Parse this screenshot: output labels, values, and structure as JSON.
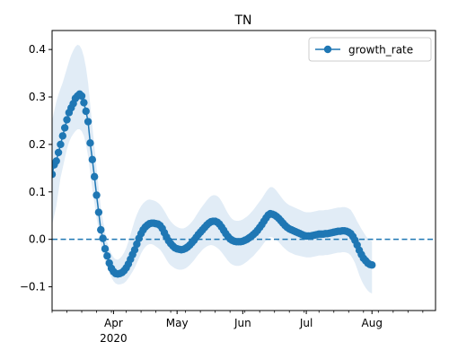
{
  "chart_data": {
    "type": "line",
    "title": "TN",
    "xlabel": "",
    "ylabel": "",
    "xlim": [
      "2020-03-03",
      "2020-08-31"
    ],
    "ylim": [
      -0.15,
      0.44
    ],
    "y_ticks": [
      -0.1,
      0.0,
      0.1,
      0.2,
      0.3,
      0.4
    ],
    "y_tick_labels": [
      "−0.1",
      "0.0",
      "0.1",
      "0.2",
      "0.3",
      "0.4"
    ],
    "x_ticks": [
      {
        "date": "2020-04-01",
        "label": "Apr",
        "sublabel": "2020"
      },
      {
        "date": "2020-05-01",
        "label": "May",
        "sublabel": ""
      },
      {
        "date": "2020-06-01",
        "label": "Jun",
        "sublabel": ""
      },
      {
        "date": "2020-07-01",
        "label": "Jul",
        "sublabel": ""
      },
      {
        "date": "2020-08-01",
        "label": "Aug",
        "sublabel": ""
      }
    ],
    "reference_line": {
      "y": 0.0,
      "style": "dashed"
    },
    "grid": false,
    "legend": {
      "position": "top-right",
      "entries": [
        "growth_rate"
      ]
    },
    "colors": {
      "line": "#1f77b4",
      "band": "#dce9f5",
      "axis": "#000000"
    },
    "series": [
      {
        "name": "growth_rate",
        "x_start": "2020-03-03",
        "values": [
          0.137,
          0.157,
          0.165,
          0.183,
          0.2,
          0.218,
          0.235,
          0.252,
          0.267,
          0.277,
          0.286,
          0.297,
          0.302,
          0.306,
          0.302,
          0.288,
          0.27,
          0.248,
          0.203,
          0.168,
          0.132,
          0.093,
          0.057,
          0.02,
          0.002,
          -0.02,
          -0.035,
          -0.05,
          -0.061,
          -0.068,
          -0.072,
          -0.073,
          -0.072,
          -0.07,
          -0.066,
          -0.06,
          -0.052,
          -0.042,
          -0.032,
          -0.022,
          -0.01,
          0.002,
          0.012,
          0.02,
          0.026,
          0.03,
          0.033,
          0.034,
          0.034,
          0.033,
          0.032,
          0.029,
          0.023,
          0.014,
          0.005,
          -0.003,
          -0.009,
          -0.014,
          -0.018,
          -0.02,
          -0.021,
          -0.022,
          -0.021,
          -0.019,
          -0.016,
          -0.012,
          -0.007,
          -0.002,
          0.004,
          0.01,
          0.015,
          0.02,
          0.025,
          0.03,
          0.034,
          0.037,
          0.038,
          0.038,
          0.036,
          0.032,
          0.026,
          0.019,
          0.012,
          0.006,
          0.001,
          -0.002,
          -0.004,
          -0.005,
          -0.005,
          -0.005,
          -0.004,
          -0.002,
          0.0,
          0.003,
          0.006,
          0.01,
          0.014,
          0.019,
          0.025,
          0.031,
          0.038,
          0.045,
          0.051,
          0.054,
          0.053,
          0.051,
          0.048,
          0.044,
          0.039,
          0.034,
          0.029,
          0.025,
          0.022,
          0.02,
          0.018,
          0.016,
          0.014,
          0.012,
          0.01,
          0.008,
          0.007,
          0.007,
          0.007,
          0.008,
          0.009,
          0.01,
          0.011,
          0.011,
          0.011,
          0.012,
          0.012,
          0.013,
          0.014,
          0.015,
          0.016,
          0.017,
          0.017,
          0.018,
          0.018,
          0.017,
          0.015,
          0.012,
          0.006,
          -0.002,
          -0.012,
          -0.023,
          -0.032,
          -0.04,
          -0.045,
          -0.05,
          -0.053,
          -0.054
        ],
        "band_low": [
          0.03,
          0.05,
          0.07,
          0.1,
          0.13,
          0.15,
          0.17,
          0.19,
          0.205,
          0.215,
          0.222,
          0.228,
          0.232,
          0.232,
          0.228,
          0.218,
          0.2,
          0.175,
          0.14,
          0.105,
          0.075,
          0.045,
          0.02,
          -0.01,
          -0.03,
          -0.045,
          -0.058,
          -0.07,
          -0.08,
          -0.088,
          -0.093,
          -0.095,
          -0.095,
          -0.094,
          -0.092,
          -0.088,
          -0.082,
          -0.075,
          -0.068,
          -0.06,
          -0.05,
          -0.04,
          -0.03,
          -0.022,
          -0.016,
          -0.012,
          -0.01,
          -0.01,
          -0.012,
          -0.015,
          -0.018,
          -0.022,
          -0.028,
          -0.035,
          -0.043,
          -0.05,
          -0.055,
          -0.058,
          -0.061,
          -0.063,
          -0.064,
          -0.064,
          -0.063,
          -0.061,
          -0.058,
          -0.054,
          -0.049,
          -0.044,
          -0.038,
          -0.032,
          -0.027,
          -0.022,
          -0.018,
          -0.015,
          -0.013,
          -0.012,
          -0.013,
          -0.015,
          -0.018,
          -0.022,
          -0.027,
          -0.033,
          -0.039,
          -0.045,
          -0.05,
          -0.053,
          -0.055,
          -0.056,
          -0.056,
          -0.055,
          -0.053,
          -0.05,
          -0.047,
          -0.043,
          -0.039,
          -0.035,
          -0.03,
          -0.025,
          -0.02,
          -0.014,
          -0.008,
          -0.002,
          0.003,
          0.005,
          0.004,
          0.002,
          -0.002,
          -0.006,
          -0.011,
          -0.016,
          -0.02,
          -0.024,
          -0.027,
          -0.029,
          -0.031,
          -0.033,
          -0.034,
          -0.035,
          -0.036,
          -0.037,
          -0.038,
          -0.038,
          -0.038,
          -0.037,
          -0.036,
          -0.035,
          -0.034,
          -0.034,
          -0.034,
          -0.033,
          -0.033,
          -0.032,
          -0.031,
          -0.03,
          -0.029,
          -0.028,
          -0.028,
          -0.027,
          -0.027,
          -0.028,
          -0.03,
          -0.034,
          -0.041,
          -0.05,
          -0.062,
          -0.075,
          -0.086,
          -0.095,
          -0.102,
          -0.108,
          -0.112,
          -0.114
        ],
        "band_high": [
          0.25,
          0.27,
          0.29,
          0.305,
          0.318,
          0.33,
          0.345,
          0.36,
          0.375,
          0.388,
          0.398,
          0.406,
          0.41,
          0.408,
          0.4,
          0.385,
          0.362,
          0.33,
          0.285,
          0.24,
          0.195,
          0.15,
          0.108,
          0.068,
          0.04,
          0.015,
          -0.005,
          -0.02,
          -0.03,
          -0.038,
          -0.042,
          -0.043,
          -0.04,
          -0.035,
          -0.028,
          -0.018,
          -0.005,
          0.01,
          0.025,
          0.04,
          0.052,
          0.062,
          0.07,
          0.076,
          0.08,
          0.083,
          0.084,
          0.083,
          0.082,
          0.08,
          0.077,
          0.073,
          0.067,
          0.06,
          0.052,
          0.044,
          0.038,
          0.033,
          0.029,
          0.026,
          0.024,
          0.023,
          0.023,
          0.025,
          0.028,
          0.032,
          0.037,
          0.043,
          0.05,
          0.057,
          0.064,
          0.07,
          0.076,
          0.082,
          0.087,
          0.091,
          0.093,
          0.093,
          0.091,
          0.087,
          0.08,
          0.072,
          0.063,
          0.055,
          0.048,
          0.043,
          0.04,
          0.039,
          0.039,
          0.04,
          0.042,
          0.045,
          0.048,
          0.052,
          0.057,
          0.062,
          0.068,
          0.074,
          0.08,
          0.086,
          0.093,
          0.1,
          0.106,
          0.11,
          0.11,
          0.107,
          0.102,
          0.096,
          0.09,
          0.084,
          0.079,
          0.075,
          0.072,
          0.07,
          0.068,
          0.066,
          0.064,
          0.062,
          0.06,
          0.058,
          0.057,
          0.057,
          0.057,
          0.058,
          0.059,
          0.06,
          0.061,
          0.061,
          0.061,
          0.062,
          0.062,
          0.063,
          0.064,
          0.065,
          0.066,
          0.067,
          0.067,
          0.068,
          0.068,
          0.067,
          0.065,
          0.062,
          0.055,
          0.047,
          0.038,
          0.03,
          0.022,
          0.015,
          0.008,
          0.002,
          -0.002,
          -0.004
        ]
      }
    ]
  }
}
